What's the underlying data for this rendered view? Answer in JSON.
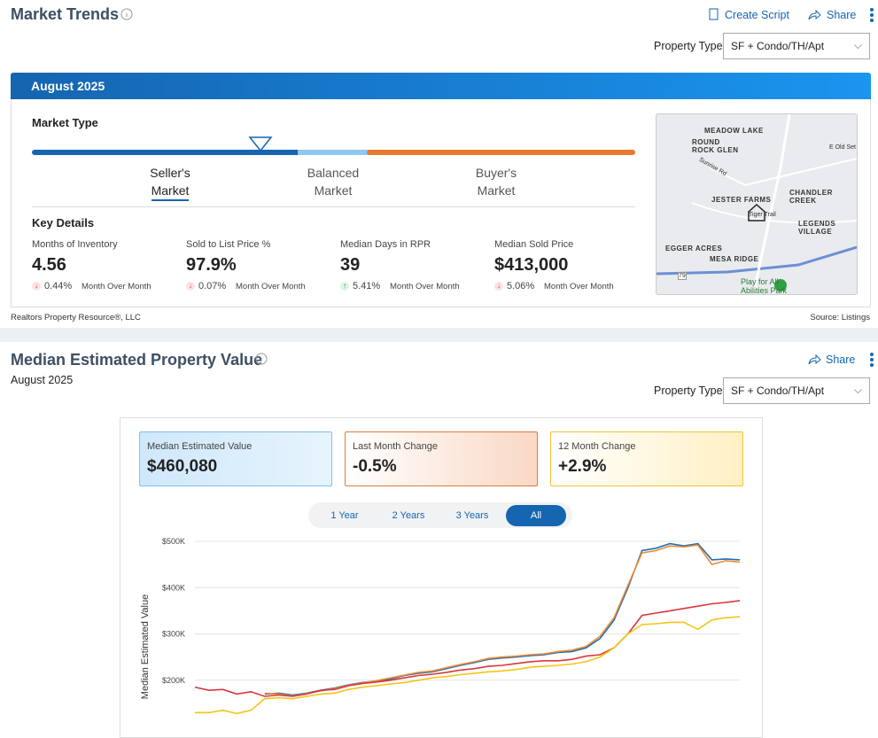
{
  "header": {
    "title": "Market Trends",
    "create_script": "Create Script",
    "share": "Share",
    "property_type_label": "Property Type",
    "property_type_value": "SF + Condo/TH/Apt"
  },
  "market": {
    "period": "August 2025",
    "market_type_title": "Market Type",
    "gauge_labels": [
      [
        "Seller's",
        "Market"
      ],
      [
        "Balanced",
        "Market"
      ],
      [
        "Buyer's",
        "Market"
      ]
    ],
    "key_details_title": "Key Details",
    "metrics": [
      {
        "label": "Months of Inventory",
        "value": "4.56",
        "change": "0.44%",
        "change_note": "Month Over Month",
        "direction": "down"
      },
      {
        "label": "Sold to List Price %",
        "value": "97.9%",
        "change": "0.07%",
        "change_note": "Month Over Month",
        "direction": "down"
      },
      {
        "label": "Median Days in RPR",
        "value": "39",
        "change": "5.41%",
        "change_note": "Month Over Month",
        "direction": "up"
      },
      {
        "label": "Median Sold Price",
        "value": "$413,000",
        "change": "5.06%",
        "change_note": "Month Over Month",
        "direction": "down"
      }
    ],
    "map_labels": [
      "MEADOW LAKE",
      "ROUND ROCK GLEN",
      "CHANDLER CREEK",
      "JESTER FARMS",
      "LEGENDS VILLAGE",
      "EGGER ACRES",
      "MESA RIDGE",
      "Play for All Abilities Park",
      "Tiger Trail",
      "Sunrise Rd",
      "E Old Set",
      "79"
    ],
    "footer_left": "Realtors Property Resource®, LLC",
    "footer_right": "Source: Listings"
  },
  "valuation": {
    "title": "Median Estimated Property Value",
    "share": "Share",
    "period": "August 2025",
    "property_type_label": "Property Type",
    "property_type_value": "SF + Condo/TH/Apt",
    "cards": [
      {
        "label": "Median Estimated Value",
        "value": "$460,080"
      },
      {
        "label": "Last Month Change",
        "value": "-0.5%"
      },
      {
        "label": "12 Month Change",
        "value": "+2.9%"
      }
    ],
    "tabs": [
      "1 Year",
      "2 Years",
      "3 Years",
      "All"
    ],
    "active_tab": "All"
  },
  "chart_data": {
    "type": "line",
    "y_label": "Median Estimated Value",
    "ylim": [
      100000,
      500000
    ],
    "yticks": [
      {
        "value": 500000,
        "label": "$500K"
      },
      {
        "value": 400000,
        "label": "$400K"
      },
      {
        "value": 300000,
        "label": "$300K"
      },
      {
        "value": 200000,
        "label": "$200K"
      }
    ],
    "grid": true,
    "series": [
      {
        "color": "#1f6fb5",
        "values": [
          null,
          null,
          null,
          null,
          null,
          170000,
          172000,
          168000,
          172000,
          178000,
          183000,
          190000,
          195000,
          198000,
          203000,
          210000,
          215000,
          218000,
          225000,
          232000,
          238000,
          245000,
          248000,
          250000,
          253000,
          255000,
          260000,
          262000,
          270000,
          290000,
          330000,
          400000,
          480000,
          485000,
          495000,
          490000,
          495000,
          460000,
          462000,
          460000
        ]
      },
      {
        "color": "#f08a32",
        "values": [
          null,
          null,
          null,
          null,
          null,
          172000,
          170000,
          166000,
          171000,
          177000,
          182000,
          189000,
          194000,
          199000,
          205000,
          211000,
          217000,
          220000,
          227000,
          234000,
          240000,
          247000,
          250000,
          252000,
          255000,
          257000,
          262000,
          265000,
          273000,
          295000,
          335000,
          405000,
          475000,
          480000,
          490000,
          488000,
          492000,
          450000,
          458000,
          455000
        ]
      },
      {
        "color": "#d9363e",
        "values": [
          185000,
          178000,
          180000,
          170000,
          175000,
          165000,
          168000,
          165000,
          170000,
          178000,
          180000,
          188000,
          193000,
          196000,
          200000,
          205000,
          210000,
          213000,
          217000,
          222000,
          225000,
          230000,
          232000,
          236000,
          240000,
          242000,
          242000,
          245000,
          252000,
          255000,
          270000,
          300000,
          340000,
          345000,
          350000,
          355000,
          360000,
          365000,
          368000,
          372000
        ]
      },
      {
        "color": "#f5c518",
        "values": [
          130000,
          130000,
          135000,
          128000,
          135000,
          160000,
          162000,
          160000,
          165000,
          170000,
          172000,
          180000,
          185000,
          188000,
          192000,
          195000,
          200000,
          205000,
          208000,
          212000,
          215000,
          218000,
          220000,
          223000,
          228000,
          230000,
          232000,
          235000,
          240000,
          250000,
          270000,
          300000,
          320000,
          322000,
          325000,
          325000,
          310000,
          330000,
          335000,
          337000
        ]
      }
    ]
  }
}
